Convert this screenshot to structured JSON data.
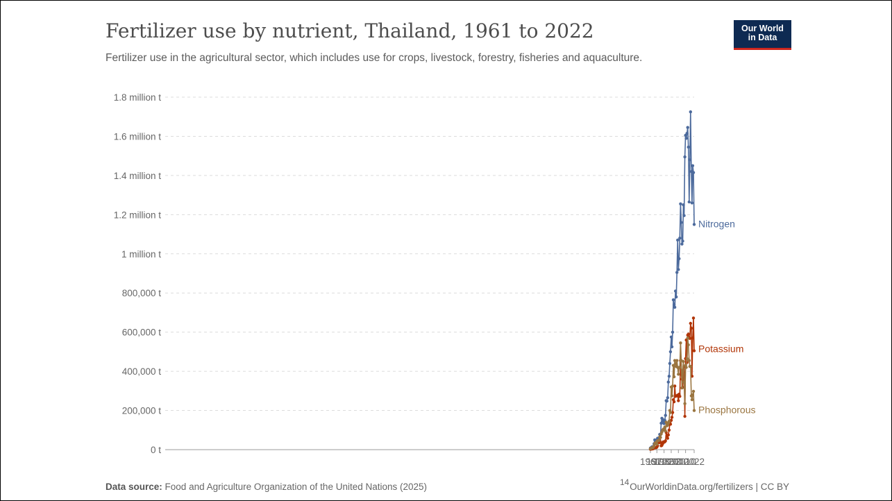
{
  "header": {
    "title": "Fertilizer use by nutrient, Thailand, 1961 to 2022",
    "subtitle": "Fertilizer use in the agricultural sector, which includes use for crops, livestock, forestry, fisheries and aquaculture.",
    "logo_line1": "Our World",
    "logo_line2": "in Data"
  },
  "footer": {
    "source_label": "Data source:",
    "source_text": "Food and Agriculture Organization of the United Nations (2025)",
    "attribution": "OurWorldinData.org/fertilizers | CC BY",
    "page_number": "14"
  },
  "chart_data": {
    "type": "line",
    "title": "Fertilizer use by nutrient, Thailand, 1961 to 2022",
    "xlabel": "",
    "ylabel": "",
    "xlim": [
      1961,
      2022
    ],
    "ylim": [
      0,
      1800000
    ],
    "grid": "horizontal dashed",
    "legend": "inline labels at line ends",
    "x_ticks": [
      "1961",
      "1970",
      "1980",
      "1990",
      "2000",
      "2010",
      "2022"
    ],
    "y_ticks": [
      {
        "value": 0,
        "label": "0 t"
      },
      {
        "value": 200000,
        "label": "200,000 t"
      },
      {
        "value": 400000,
        "label": "400,000 t"
      },
      {
        "value": 600000,
        "label": "600,000 t"
      },
      {
        "value": 800000,
        "label": "800,000 t"
      },
      {
        "value": 1000000,
        "label": "1 million t"
      },
      {
        "value": 1200000,
        "label": "1.2 million t"
      },
      {
        "value": 1400000,
        "label": "1.4 million t"
      },
      {
        "value": 1600000,
        "label": "1.6 million t"
      },
      {
        "value": 1800000,
        "label": "1.8 million t"
      }
    ],
    "x": [
      1961,
      1962,
      1963,
      1964,
      1965,
      1966,
      1967,
      1968,
      1969,
      1970,
      1971,
      1972,
      1973,
      1974,
      1975,
      1976,
      1977,
      1978,
      1979,
      1980,
      1981,
      1982,
      1983,
      1984,
      1985,
      1986,
      1987,
      1988,
      1989,
      1990,
      1991,
      1992,
      1993,
      1994,
      1995,
      1996,
      1997,
      1998,
      1999,
      2000,
      2001,
      2002,
      2003,
      2004,
      2005,
      2006,
      2007,
      2008,
      2009,
      2010,
      2011,
      2012,
      2013,
      2014,
      2015,
      2016,
      2017,
      2018,
      2019,
      2020,
      2021,
      2022
    ],
    "series": [
      {
        "name": "Nitrogen",
        "color": "#4c6a9c",
        "values": [
          8000,
          10000,
          14000,
          14000,
          15000,
          30000,
          50000,
          49000,
          47000,
          38000,
          58000,
          57000,
          60000,
          78000,
          77000,
          135000,
          160000,
          155000,
          143000,
          133000,
          150000,
          175000,
          250000,
          248000,
          265000,
          345000,
          375000,
          440000,
          500000,
          575000,
          525000,
          600000,
          765000,
          740000,
          727000,
          810000,
          780000,
          905000,
          1070000,
          920000,
          975000,
          1080000,
          1255000,
          1160000,
          1050000,
          1065000,
          1250000,
          1195000,
          1495000,
          1605000,
          1590000,
          1615000,
          1645000,
          1545000,
          1265000,
          1480000,
          1725000,
          1420000,
          1260000,
          1450000,
          1415000,
          1150000
        ]
      },
      {
        "name": "Potassium",
        "color": "#b13507",
        "values": [
          2000,
          3000,
          4000,
          4000,
          5000,
          8000,
          12000,
          10000,
          10000,
          13000,
          20000,
          38000,
          35000,
          48000,
          38000,
          20000,
          22000,
          30000,
          40000,
          38000,
          40000,
          45000,
          88000,
          70000,
          58000,
          75000,
          100000,
          130000,
          130000,
          150000,
          165000,
          190000,
          255000,
          245000,
          325000,
          272000,
          275000,
          275000,
          278000,
          250000,
          283000,
          272000,
          455000,
          385000,
          360000,
          318000,
          395000,
          425000,
          170000,
          465000,
          560000,
          445000,
          585000,
          590000,
          570000,
          568000,
          645000,
          620000,
          375000,
          570000,
          672000,
          505000
        ]
      },
      {
        "name": "Phosphorous",
        "color": "#9a7540",
        "values": [
          5000,
          7000,
          10000,
          10000,
          12000,
          20000,
          32000,
          30000,
          38000,
          28000,
          45000,
          48000,
          48000,
          65000,
          62000,
          80000,
          90000,
          100000,
          105000,
          100000,
          115000,
          95000,
          140000,
          122000,
          125000,
          135000,
          145000,
          200000,
          190000,
          320000,
          275000,
          325000,
          430000,
          372000,
          455000,
          440000,
          425000,
          455000,
          420000,
          385000,
          420000,
          420000,
          545000,
          455000,
          315000,
          405000,
          450000,
          345000,
          235000,
          430000,
          420000,
          465000,
          570000,
          535000,
          455000,
          425000,
          425000,
          275000,
          255000,
          280000,
          298000,
          200000
        ]
      }
    ]
  }
}
